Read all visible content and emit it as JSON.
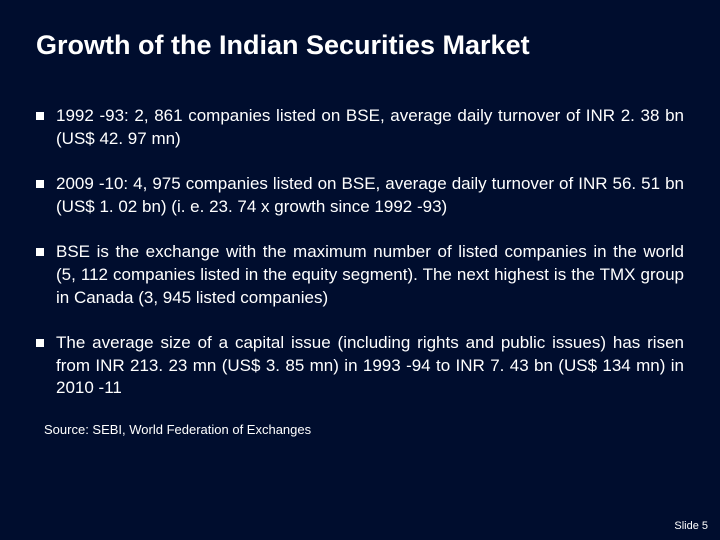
{
  "colors": {
    "background": "#000d2e",
    "text": "#ffffff",
    "bullet_marker": "#ffffff"
  },
  "typography": {
    "title_fontsize": 27,
    "title_fontweight": "bold",
    "body_fontsize": 17,
    "source_fontsize": 13,
    "slidenum_fontsize": 11,
    "font_family": "Arial"
  },
  "title": "Growth of the Indian Securities Market",
  "bullets": [
    "1992 -93: 2, 861 companies listed on BSE, average daily turnover of INR 2. 38 bn  (US$ 42. 97 mn)",
    "2009 -10: 4, 975 companies listed on BSE, average daily turnover of INR 56. 51 bn (US$ 1. 02 bn)  (i. e. 23. 74 x growth since 1992 -93)",
    "BSE is the exchange with the maximum number of listed companies in the world (5, 112 companies listed in the equity segment). The next highest is the TMX group in Canada (3, 945 listed companies)",
    "The average size of a capital issue (including rights and public issues) has risen from INR 213. 23 mn (US$ 3. 85 mn) in 1993 -94 to INR 7. 43 bn (US$ 134 mn) in 2010 -11"
  ],
  "source": "Source: SEBI, World Federation of Exchanges",
  "slide_number": "Slide 5"
}
